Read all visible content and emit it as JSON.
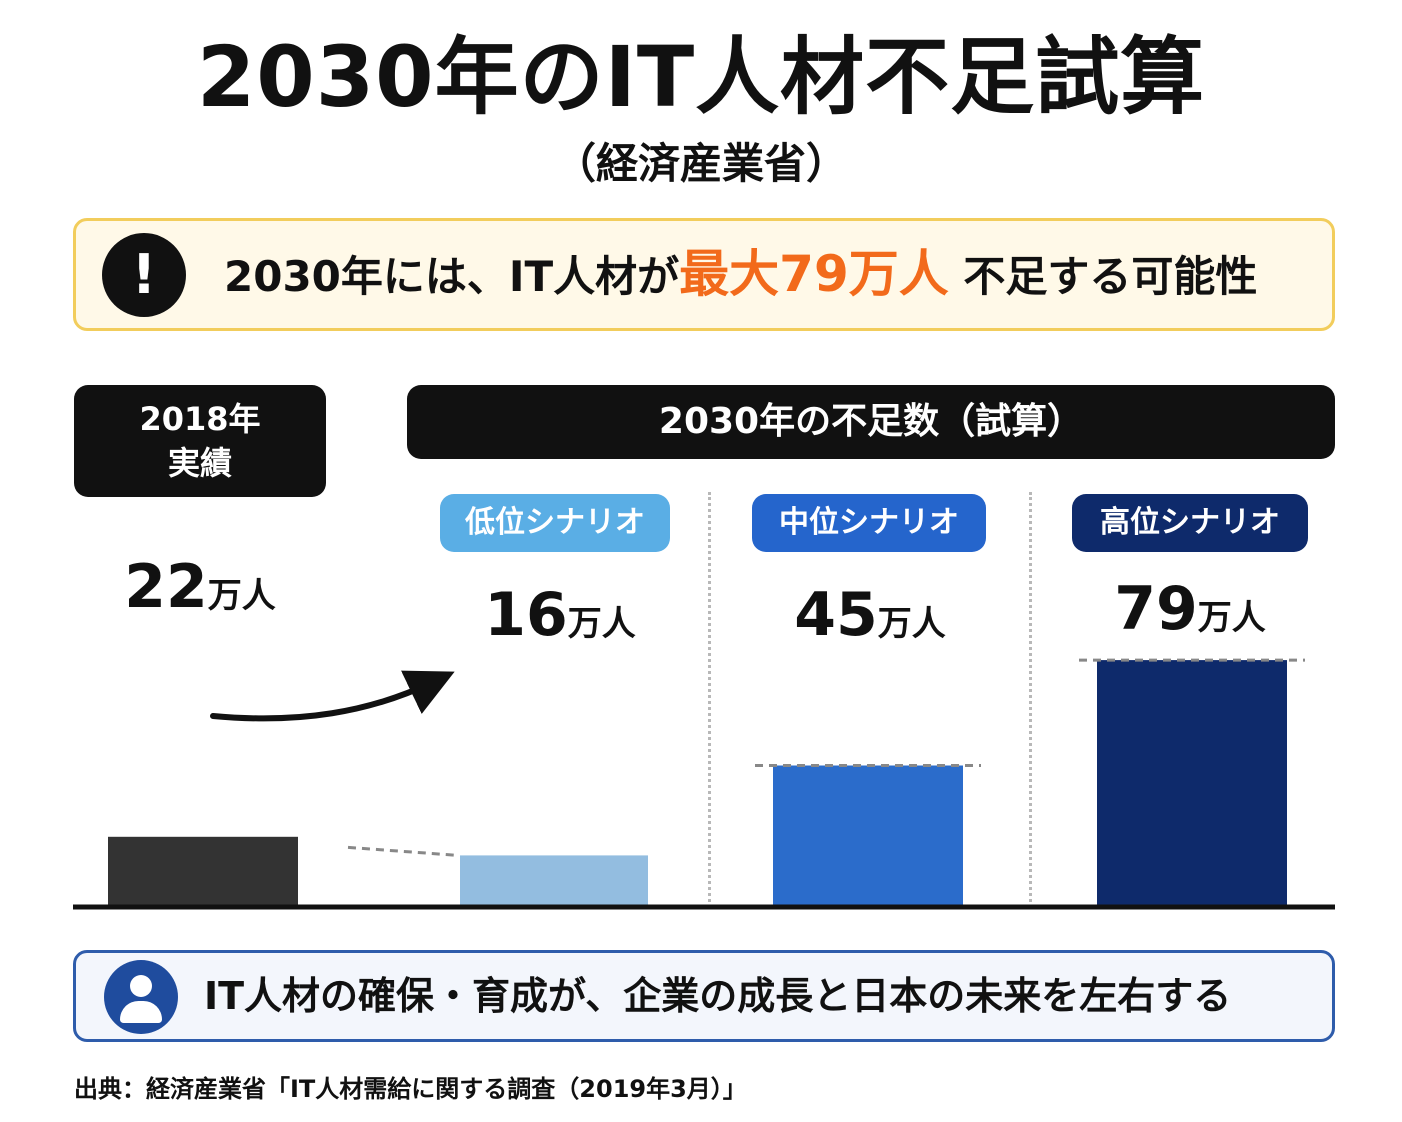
{
  "title": "2030年のIT人材不足試算",
  "subtitle": "（経済産業省）",
  "alert": {
    "icon": "exclamation-icon",
    "text_before": "2030年には、IT人材が",
    "highlight": "最大79万人",
    "text_after": "不足する可能性",
    "highlight_color": "#f26a1b"
  },
  "header_2018": {
    "line1": "2018年",
    "line2": "実績"
  },
  "header_2030": "2030年の不足数（試算）",
  "chart_data": {
    "type": "bar",
    "categories": [
      "2018年 実績",
      "低位シナリオ",
      "中位シナリオ",
      "高位シナリオ"
    ],
    "values": [
      22,
      16,
      45,
      79
    ],
    "unit": "万人",
    "colors": [
      "#333333",
      "#93bde0",
      "#2b6ccb",
      "#0e2a6b"
    ],
    "pill_colors": [
      "",
      "#5aaee5",
      "#2565cc",
      "#0e2a6b"
    ],
    "title": "2030年の不足数（試算）",
    "xlabel": "",
    "ylabel": ""
  },
  "bars": [
    {
      "label": "",
      "value": "22",
      "unit": "万人"
    },
    {
      "label": "低位シナリオ",
      "value": "16",
      "unit": "万人"
    },
    {
      "label": "中位シナリオ",
      "value": "45",
      "unit": "万人"
    },
    {
      "label": "高位シナリオ",
      "value": "79",
      "unit": "万人"
    }
  ],
  "footer": {
    "icon": "person-icon",
    "text": "IT人材の確保・育成が、企業の成長と日本の未来を左右する"
  },
  "source": "出典：経済産業省「IT人材需給に関する調査（2019年3月）」"
}
